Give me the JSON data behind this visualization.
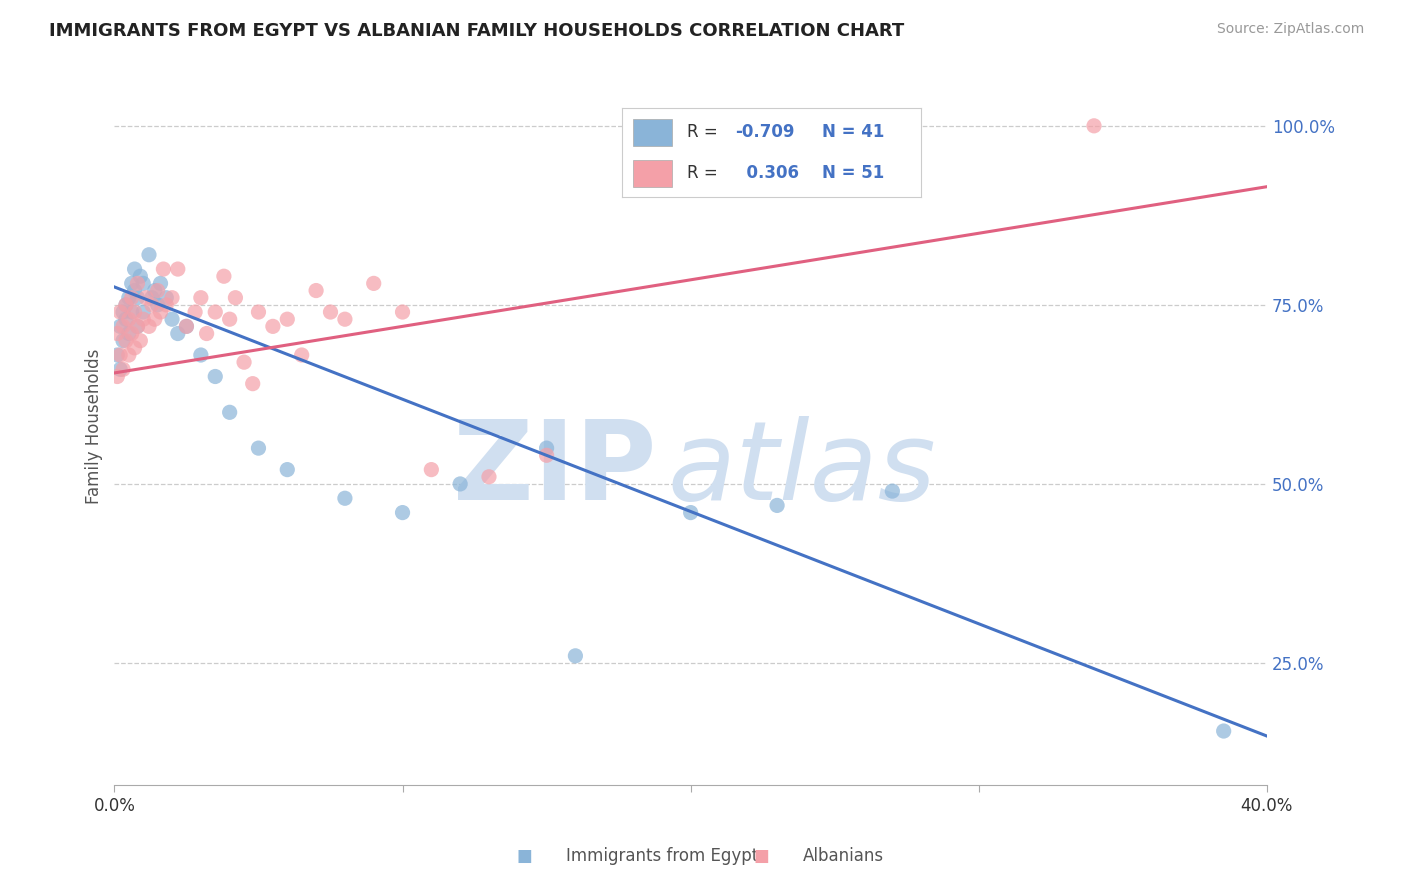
{
  "title": "IMMIGRANTS FROM EGYPT VS ALBANIAN FAMILY HOUSEHOLDS CORRELATION CHART",
  "source": "Source: ZipAtlas.com",
  "xlabel_blue": "Immigrants from Egypt",
  "xlabel_pink": "Albanians",
  "ylabel": "Family Households",
  "xlim": [
    0.0,
    0.4
  ],
  "ylim": [
    0.08,
    1.08
  ],
  "yticks_right": [
    0.25,
    0.5,
    0.75,
    1.0
  ],
  "ytick_labels_right": [
    "25.0%",
    "50.0%",
    "75.0%",
    "100.0%"
  ],
  "blue_R": -0.709,
  "blue_N": 41,
  "pink_R": 0.306,
  "pink_N": 51,
  "blue_color": "#8ab4d8",
  "pink_color": "#f4a0a8",
  "blue_line_color": "#4472C4",
  "pink_line_color": "#E06080",
  "legend_R_color": "#4472C4",
  "watermark_color": "#d0dff0",
  "blue_line_x0": 0.0,
  "blue_line_y0": 0.775,
  "blue_line_x1": 0.4,
  "blue_line_y1": 0.148,
  "pink_line_x0": 0.0,
  "pink_line_y0": 0.655,
  "pink_line_x1": 0.4,
  "pink_line_y1": 0.915,
  "blue_scatter_x": [
    0.001,
    0.002,
    0.002,
    0.003,
    0.003,
    0.004,
    0.004,
    0.005,
    0.005,
    0.006,
    0.006,
    0.007,
    0.007,
    0.008,
    0.008,
    0.009,
    0.01,
    0.01,
    0.012,
    0.013,
    0.014,
    0.015,
    0.016,
    0.018,
    0.02,
    0.022,
    0.025,
    0.03,
    0.035,
    0.04,
    0.05,
    0.06,
    0.08,
    0.1,
    0.12,
    0.15,
    0.16,
    0.2,
    0.23,
    0.27,
    0.385
  ],
  "blue_scatter_y": [
    0.68,
    0.72,
    0.66,
    0.74,
    0.7,
    0.75,
    0.73,
    0.76,
    0.71,
    0.78,
    0.74,
    0.8,
    0.77,
    0.76,
    0.72,
    0.79,
    0.74,
    0.78,
    0.82,
    0.76,
    0.77,
    0.75,
    0.78,
    0.76,
    0.73,
    0.71,
    0.72,
    0.68,
    0.65,
    0.6,
    0.55,
    0.52,
    0.48,
    0.46,
    0.5,
    0.55,
    0.26,
    0.46,
    0.47,
    0.49,
    0.155
  ],
  "pink_scatter_x": [
    0.001,
    0.001,
    0.002,
    0.002,
    0.003,
    0.003,
    0.004,
    0.004,
    0.005,
    0.005,
    0.006,
    0.006,
    0.007,
    0.007,
    0.008,
    0.008,
    0.009,
    0.01,
    0.011,
    0.012,
    0.013,
    0.014,
    0.015,
    0.016,
    0.017,
    0.018,
    0.02,
    0.022,
    0.025,
    0.028,
    0.03,
    0.032,
    0.035,
    0.038,
    0.04,
    0.042,
    0.045,
    0.048,
    0.05,
    0.055,
    0.06,
    0.065,
    0.07,
    0.075,
    0.08,
    0.09,
    0.1,
    0.11,
    0.13,
    0.15,
    0.34
  ],
  "pink_scatter_y": [
    0.65,
    0.71,
    0.68,
    0.74,
    0.66,
    0.72,
    0.7,
    0.75,
    0.68,
    0.73,
    0.71,
    0.76,
    0.69,
    0.74,
    0.72,
    0.78,
    0.7,
    0.73,
    0.76,
    0.72,
    0.75,
    0.73,
    0.77,
    0.74,
    0.8,
    0.75,
    0.76,
    0.8,
    0.72,
    0.74,
    0.76,
    0.71,
    0.74,
    0.79,
    0.73,
    0.76,
    0.67,
    0.64,
    0.74,
    0.72,
    0.73,
    0.68,
    0.77,
    0.74,
    0.73,
    0.78,
    0.74,
    0.52,
    0.51,
    0.54,
    1.0
  ]
}
